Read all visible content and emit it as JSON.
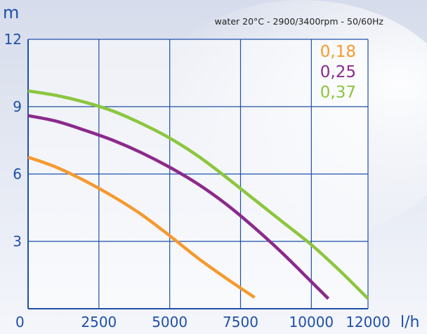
{
  "chart_data": {
    "type": "line",
    "subtitle": "water 20°C - 2900/3400rpm - 50/60Hz",
    "xlabel": "l/h",
    "ylabel": "m",
    "x_ticks": [
      0,
      2500,
      5000,
      7500,
      10000,
      12000
    ],
    "y_ticks": [
      3,
      6,
      9,
      12
    ],
    "xlim": [
      0,
      12000
    ],
    "ylim": [
      0,
      12
    ],
    "grid": true,
    "legend_position": "top-right",
    "colors": {
      "grid": "#1f4fa8",
      "axis_text": "#1f4fa8",
      "background_top": "#d6dceb",
      "background_bottom": "#f4f6fb",
      "plot_bg": "#ffffff"
    },
    "series": [
      {
        "name": "0,18",
        "color": "#f59a2f",
        "points": [
          [
            0,
            6.75
          ],
          [
            1000,
            6.3
          ],
          [
            2000,
            5.7
          ],
          [
            3000,
            5.0
          ],
          [
            4000,
            4.2
          ],
          [
            5000,
            3.25
          ],
          [
            6000,
            2.25
          ],
          [
            7000,
            1.35
          ],
          [
            8000,
            0.5
          ]
        ]
      },
      {
        "name": "0,25",
        "color": "#8b2a8c",
        "points": [
          [
            0,
            8.6
          ],
          [
            1000,
            8.35
          ],
          [
            2000,
            7.95
          ],
          [
            3000,
            7.5
          ],
          [
            4000,
            6.95
          ],
          [
            5000,
            6.3
          ],
          [
            6000,
            5.55
          ],
          [
            7000,
            4.65
          ],
          [
            8000,
            3.6
          ],
          [
            9000,
            2.45
          ],
          [
            10000,
            1.2
          ],
          [
            10600,
            0.45
          ]
        ]
      },
      {
        "name": "0,37",
        "color": "#8cc63f",
        "points": [
          [
            0,
            9.7
          ],
          [
            1000,
            9.5
          ],
          [
            2000,
            9.2
          ],
          [
            3000,
            8.8
          ],
          [
            4000,
            8.25
          ],
          [
            5000,
            7.6
          ],
          [
            6000,
            6.8
          ],
          [
            7000,
            5.85
          ],
          [
            8000,
            4.85
          ],
          [
            9000,
            3.85
          ],
          [
            10000,
            2.85
          ],
          [
            11000,
            1.7
          ],
          [
            12000,
            0.45
          ]
        ]
      }
    ]
  }
}
